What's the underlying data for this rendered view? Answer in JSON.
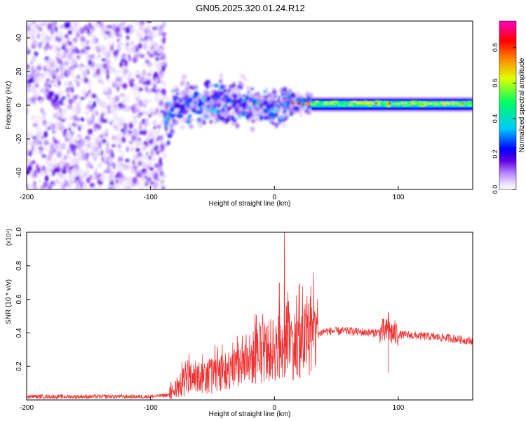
{
  "title": "GN05.2025.320.01.24.R12",
  "chart_data": [
    {
      "type": "heatmap",
      "title": "GN05.2025.320.01.24.R12",
      "xlabel": "Height of straight line (km)",
      "ylabel": "Frequency (Hz)",
      "xlim": [
        -200,
        160
      ],
      "ylim": [
        -50,
        50
      ],
      "xticks": [
        -200,
        -100,
        0,
        100
      ],
      "xtick_labels": [
        "-200",
        "-100",
        "0",
        "100"
      ],
      "yticks": [
        -40,
        -20,
        0,
        20,
        40
      ],
      "ytick_labels": [
        "-40",
        "-20",
        "0",
        "20",
        "40"
      ],
      "colorbar": {
        "label": "Normalized spectral amplitude",
        "range": [
          0,
          0.95
        ],
        "ticks": [
          0,
          0.2,
          0.4,
          0.6,
          0.8
        ],
        "tick_labels": [
          "0.0",
          "0.2",
          "0.4",
          "0.6",
          "0.8"
        ],
        "colormap": [
          "#ffffff",
          "#e8d8ff",
          "#b080ff",
          "#6000e0",
          "#0000ff",
          "#00c8ff",
          "#00ff60",
          "#e0ff00",
          "#ff8000",
          "#ff0000",
          "#ff00c0"
        ]
      },
      "regions": [
        {
          "x_range": [
            -200,
            -88
          ],
          "freq_range": [
            -50,
            50
          ],
          "description": "broadband noise",
          "amplitude": 0.1
        },
        {
          "x_range": [
            -88,
            30
          ],
          "freq_range": [
            -12,
            10
          ],
          "description": "turbulent spectrum",
          "amplitude": 0.3
        },
        {
          "x_range": [
            30,
            160
          ],
          "freq_range": [
            -2,
            4
          ],
          "description": "narrow stable band",
          "amplitude": 0.55
        }
      ]
    },
    {
      "type": "line",
      "xlabel": "Height of straight line (km)",
      "ylabel": "SNR (10 * v/v)",
      "y_multiplier": "(x10⁴)",
      "xlim": [
        -200,
        160
      ],
      "ylim": [
        0,
        1.0
      ],
      "xticks": [
        -200,
        -100,
        0,
        100
      ],
      "xtick_labels": [
        "-200",
        "-100",
        "0",
        "100"
      ],
      "yticks": [
        0.2,
        0.4,
        0.6,
        0.8,
        1.0
      ],
      "ytick_labels": [
        "0.2",
        "0.4",
        "0.6",
        "0.8",
        "1.0"
      ],
      "color": "#ee3030",
      "series": [
        {
          "name": "SNR",
          "x": [
            -200,
            -150,
            -100,
            -85,
            -80,
            -70,
            -60,
            -50,
            -40,
            -30,
            -20,
            -10,
            0,
            5,
            10,
            15,
            20,
            25,
            30,
            35,
            40,
            60,
            80,
            90,
            100,
            120,
            140,
            160
          ],
          "values": [
            0.02,
            0.02,
            0.02,
            0.03,
            0.06,
            0.12,
            0.14,
            0.15,
            0.17,
            0.2,
            0.24,
            0.28,
            0.3,
            0.33,
            0.35,
            0.33,
            0.34,
            0.36,
            0.38,
            0.39,
            0.41,
            0.41,
            0.4,
            0.41,
            0.39,
            0.38,
            0.37,
            0.35
          ],
          "peaks": [
            {
              "x": 8,
              "value": 1.0
            },
            {
              "x": 4,
              "value": 0.7
            },
            {
              "x": 20,
              "value": 0.69
            },
            {
              "x": 92,
              "value": 0.52
            }
          ]
        }
      ]
    }
  ]
}
